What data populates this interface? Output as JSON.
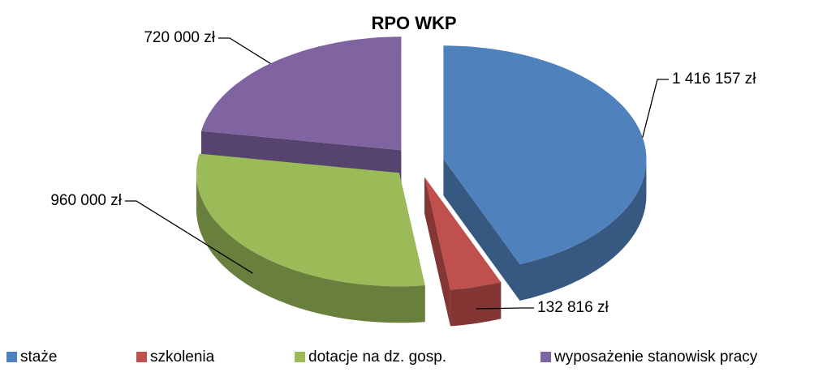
{
  "chart_data": {
    "type": "pie3d",
    "title": "RPO WKP",
    "categories": [
      "staże",
      "szkolenia",
      "dotacje na dz. gosp.",
      "wyposażenie stanowisk pracy"
    ],
    "values": [
      1416157,
      132816,
      960000,
      720000
    ],
    "value_labels": [
      "1 416 157 zł",
      "132 816 zł",
      "960 000 zł",
      "720 000 zł"
    ],
    "colors": [
      "#4f81bd",
      "#c0504d",
      "#9bbb59",
      "#8064a2"
    ],
    "legend": "bottom"
  }
}
